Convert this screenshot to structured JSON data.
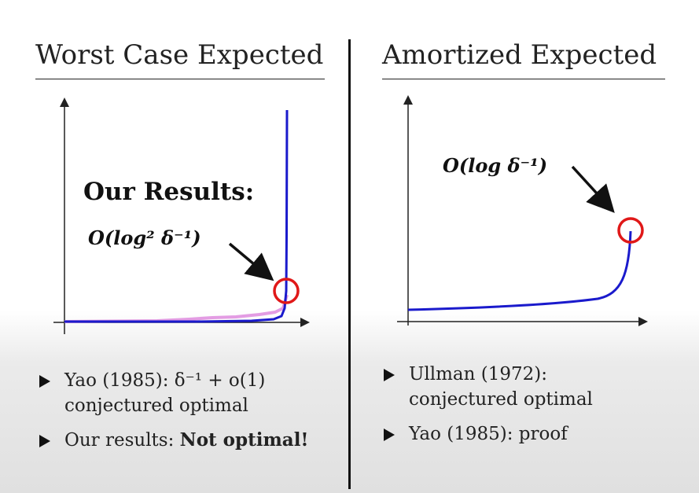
{
  "left_panel": {
    "title": "Worst Case Expected",
    "results_label": "Our Results:",
    "annotation": "O(log² δ⁻¹)",
    "bullets": [
      {
        "lines": [
          "Yao (1985): δ⁻¹ + o(1)",
          "conjectured optimal"
        ]
      },
      {
        "prefix": "Our results: ",
        "bold": "Not optimal!"
      }
    ]
  },
  "right_panel": {
    "title": "Amortized Expected",
    "annotation": "O(log δ⁻¹)",
    "bullets": [
      {
        "lines": [
          "Ullman (1972):",
          "conjectured optimal"
        ]
      },
      {
        "lines": [
          "Yao (1985): proof"
        ]
      }
    ]
  },
  "colors": {
    "curve": "#1a1acc",
    "baseline_curve": "#e39ce3",
    "highlight_circle": "#e01818",
    "axis": "#222222"
  }
}
